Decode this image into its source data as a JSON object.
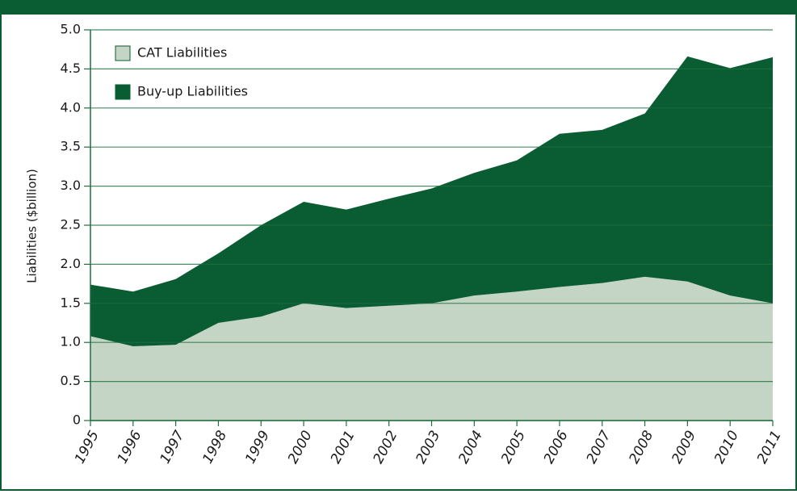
{
  "chart_data": {
    "type": "stacked-area",
    "y_label": "Liabilities ($billion)",
    "categories": [
      "1995",
      "1996",
      "1997",
      "1998",
      "1999",
      "2000",
      "2001",
      "2002",
      "2003",
      "2004",
      "2005",
      "2006",
      "2007",
      "2008",
      "2009",
      "2010",
      "2011"
    ],
    "series": [
      {
        "name": "CAT Liabilities",
        "color": "#c5d5c5",
        "values": [
          1.08,
          0.95,
          0.97,
          1.25,
          1.33,
          1.5,
          1.44,
          1.47,
          1.5,
          1.6,
          1.65,
          1.71,
          1.76,
          1.84,
          1.78,
          1.6,
          1.5
        ]
      },
      {
        "name": "Buy-up Liabilities",
        "color": "#0a5c32",
        "values": [
          0.66,
          0.7,
          0.84,
          0.89,
          1.17,
          1.3,
          1.26,
          1.37,
          1.47,
          1.57,
          1.68,
          1.96,
          1.96,
          2.09,
          2.88,
          2.91,
          3.15
        ]
      }
    ],
    "ylim": [
      0,
      5
    ],
    "yticks": [
      0,
      0.5,
      {
        "value": 1,
        "label": "1.0"
      },
      1.5,
      {
        "value": 2,
        "label": "2.0"
      },
      2.5,
      {
        "value": 3,
        "label": "3.0"
      },
      3.5,
      {
        "value": 4,
        "label": "4.0"
      },
      4.5,
      {
        "value": 5,
        "label": "5.0"
      }
    ],
    "grid": true
  }
}
